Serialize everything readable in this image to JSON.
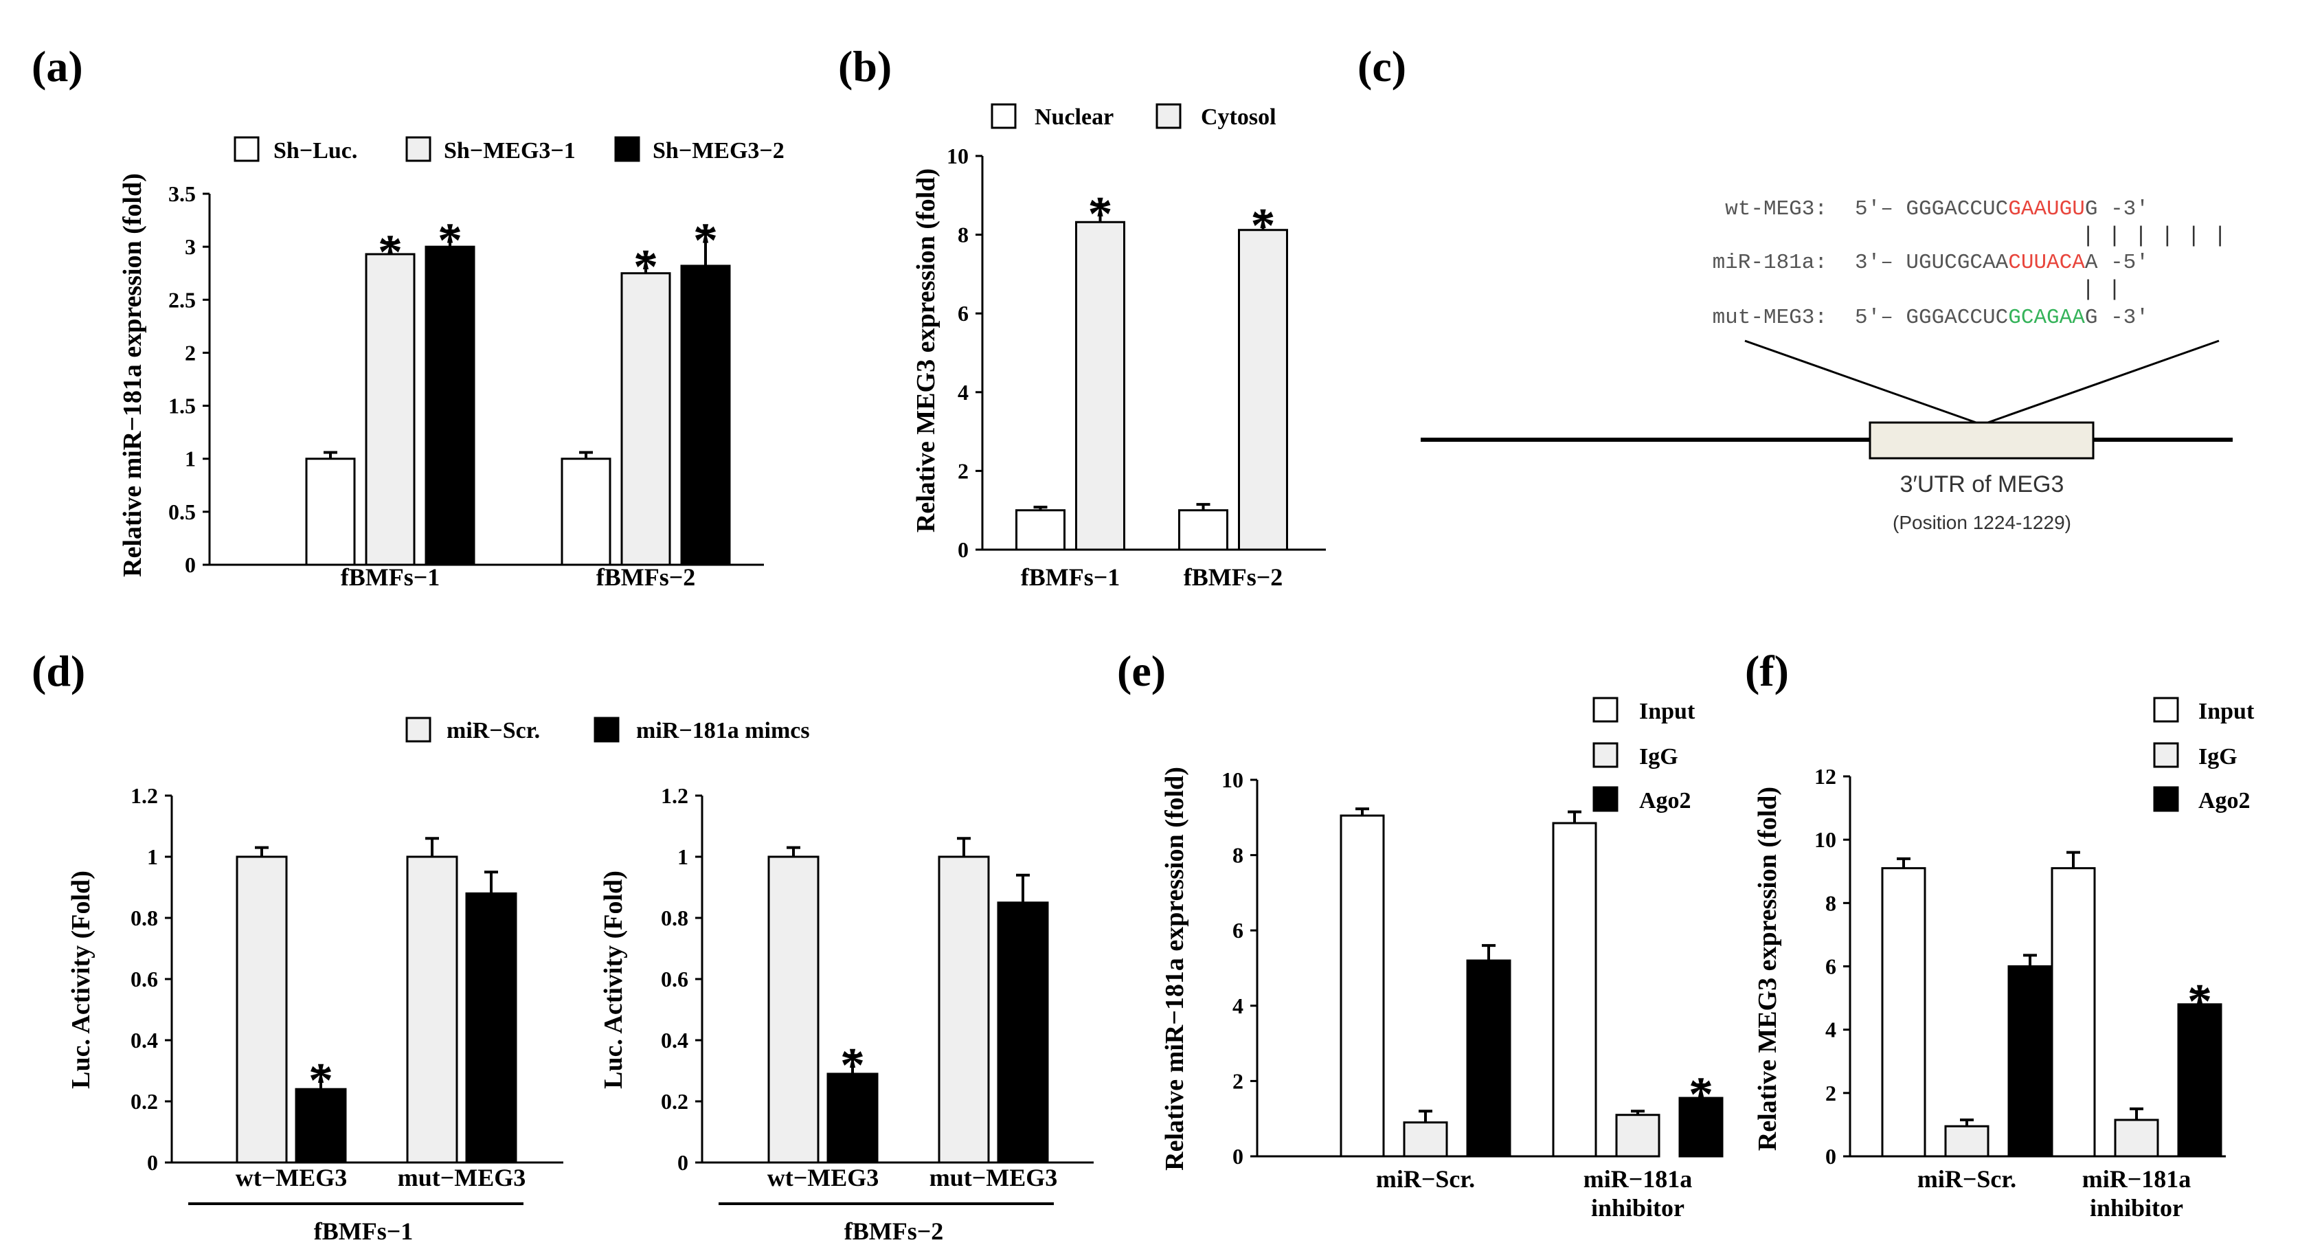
{
  "chart_data": [
    {
      "id": "a",
      "panel_label": "(a)",
      "type": "bar",
      "ylabel": "Relative miR−181a expression (fold)",
      "ylim": [
        0,
        3.5
      ],
      "yticks": [
        "0",
        "0.5",
        "1",
        "1.5",
        "2",
        "2.5",
        "3",
        "3.5"
      ],
      "ytick_values": [
        0,
        0.5,
        1,
        1.5,
        2,
        2.5,
        3,
        3.5
      ],
      "categories": [
        "fBMFs−1",
        "fBMFs−2"
      ],
      "legend_position": "top",
      "series": [
        {
          "name": "Sh−Luc.",
          "fill": "#ffffff",
          "values": [
            1.0,
            1.0
          ],
          "errors": [
            0.06,
            0.06
          ],
          "sig": [
            "",
            ""
          ]
        },
        {
          "name": "Sh−MEG3−1",
          "fill": "#efefef",
          "values": [
            2.93,
            2.75
          ],
          "errors": [
            0.11,
            0.15
          ],
          "sig": [
            "*",
            "*"
          ]
        },
        {
          "name": "Sh−MEG3−2",
          "fill": "#000000",
          "values": [
            3.0,
            2.82
          ],
          "errors": [
            0.15,
            0.33
          ],
          "sig": [
            "*",
            "*"
          ]
        }
      ]
    },
    {
      "id": "b",
      "panel_label": "(b)",
      "type": "bar",
      "ylabel": "Relative MEG3 expression (fold)",
      "ylim": [
        0,
        10
      ],
      "yticks": [
        "0",
        "2",
        "4",
        "6",
        "8",
        "10"
      ],
      "ytick_values": [
        0,
        2,
        4,
        6,
        8,
        10
      ],
      "categories": [
        "fBMFs−1",
        "fBMFs−2"
      ],
      "legend_position": "top",
      "series": [
        {
          "name": "Nuclear",
          "fill": "#ffffff",
          "values": [
            1.0,
            1.0
          ],
          "errors": [
            0.08,
            0.15
          ],
          "sig": [
            "",
            ""
          ]
        },
        {
          "name": "Cytosol",
          "fill": "#efefef",
          "values": [
            8.32,
            8.12
          ],
          "errors": [
            0.45,
            0.35
          ],
          "sig": [
            "*",
            "*"
          ]
        }
      ]
    },
    {
      "id": "d1",
      "panel_label": "(d)",
      "type": "bar",
      "ylabel": "Luc. Activity (Fold)",
      "ylim": [
        0,
        1.2
      ],
      "yticks": [
        "0",
        "0.2",
        "0.4",
        "0.6",
        "0.8",
        "1",
        "1.2"
      ],
      "ytick_values": [
        0,
        0.2,
        0.4,
        0.6,
        0.8,
        1.0,
        1.2
      ],
      "categories": [
        "wt−MEG3",
        "mut−MEG3"
      ],
      "group_label": "fBMFs−1",
      "legend_position": "top",
      "series": [
        {
          "name": "miR−Scr.",
          "fill": "#efefef",
          "values": [
            1.0,
            1.0
          ],
          "errors": [
            0.03,
            0.06
          ],
          "sig": [
            "",
            ""
          ]
        },
        {
          "name": "miR−181a mimcs",
          "fill": "#000000",
          "values": [
            0.24,
            0.88
          ],
          "errors": [
            0.06,
            0.07
          ],
          "sig": [
            "*",
            ""
          ]
        }
      ]
    },
    {
      "id": "d2",
      "panel_label": "",
      "type": "bar",
      "ylabel": "Luc. Activity (Fold)",
      "ylim": [
        0,
        1.2
      ],
      "yticks": [
        "0",
        "0.2",
        "0.4",
        "0.6",
        "0.8",
        "1",
        "1.2"
      ],
      "ytick_values": [
        0,
        0.2,
        0.4,
        0.6,
        0.8,
        1.0,
        1.2
      ],
      "categories": [
        "wt−MEG3",
        "mut−MEG3"
      ],
      "group_label": "fBMFs−2",
      "series": [
        {
          "name": "miR−Scr.",
          "fill": "#efefef",
          "values": [
            1.0,
            1.0
          ],
          "errors": [
            0.03,
            0.06
          ],
          "sig": [
            "",
            ""
          ]
        },
        {
          "name": "miR−181a mimcs",
          "fill": "#000000",
          "values": [
            0.29,
            0.85
          ],
          "errors": [
            0.06,
            0.09
          ],
          "sig": [
            "*",
            ""
          ]
        }
      ]
    },
    {
      "id": "e",
      "panel_label": "(e)",
      "type": "bar",
      "ylabel": "Relative miR−181a expression (fold)",
      "ylim": [
        0,
        10
      ],
      "yticks": [
        "0",
        "2",
        "4",
        "6",
        "8",
        "10"
      ],
      "ytick_values": [
        0,
        2,
        4,
        6,
        8,
        10
      ],
      "categories": [
        "miR−Scr.",
        "miR−181a inhibitor"
      ],
      "legend_position": "top-right",
      "series": [
        {
          "name": "Input",
          "fill": "#ffffff",
          "values": [
            9.05,
            8.85
          ],
          "errors": [
            0.18,
            0.3
          ],
          "sig": [
            "",
            ""
          ]
        },
        {
          "name": "IgG",
          "fill": "#efefef",
          "values": [
            0.9,
            1.1
          ],
          "errors": [
            0.3,
            0.1
          ],
          "sig": [
            "",
            ""
          ]
        },
        {
          "name": "Ago2",
          "fill": "#000000",
          "values": [
            5.2,
            1.55
          ],
          "errors": [
            0.4,
            0.35
          ],
          "sig": [
            "",
            "*"
          ]
        }
      ]
    },
    {
      "id": "f",
      "panel_label": "(f)",
      "type": "bar",
      "ylabel": "Relative MEG3 expression (fold)",
      "ylim": [
        0,
        12
      ],
      "yticks": [
        "0",
        "2",
        "4",
        "6",
        "8",
        "10",
        "12"
      ],
      "ytick_values": [
        0,
        2,
        4,
        6,
        8,
        10,
        12
      ],
      "categories": [
        "miR−Scr.",
        "miR−181a inhibitor"
      ],
      "legend_position": "top-right",
      "series": [
        {
          "name": "Input",
          "fill": "#ffffff",
          "values": [
            9.1,
            9.1
          ],
          "errors": [
            0.3,
            0.5
          ],
          "sig": [
            "",
            ""
          ]
        },
        {
          "name": "IgG",
          "fill": "#efefef",
          "values": [
            0.95,
            1.15
          ],
          "errors": [
            0.2,
            0.35
          ],
          "sig": [
            "",
            ""
          ]
        },
        {
          "name": "Ago2",
          "fill": "#000000",
          "values": [
            6.0,
            4.8
          ],
          "errors": [
            0.35,
            0.4
          ],
          "sig": [
            "",
            "*"
          ]
        }
      ]
    }
  ],
  "panel_c": {
    "panel_label": "(c)",
    "rows": [
      {
        "label": "wt-MEG3:",
        "prefix": "5′– GGGACCUC",
        "highlight": "GAAUGU",
        "suffix": "G -3′",
        "highlight_color": "#e8453c"
      },
      {
        "label": "miR-181a:",
        "prefix": "3′– UGUCGCAA",
        "highlight": "CUUACA",
        "suffix": "A -5′",
        "highlight_color": "#e8453c"
      },
      {
        "label": "mut-MEG3:",
        "prefix": "5′– GGGACCUC",
        "highlight": "GCAGAA",
        "suffix": "G -3′",
        "highlight_color": "#35b35a"
      }
    ],
    "pairing_marks": "| | | | | |",
    "mut_pairing_marks": "|   |",
    "utr_label": "3′UTR of  MEG3",
    "position_label": "(Position 1224-1229)"
  }
}
